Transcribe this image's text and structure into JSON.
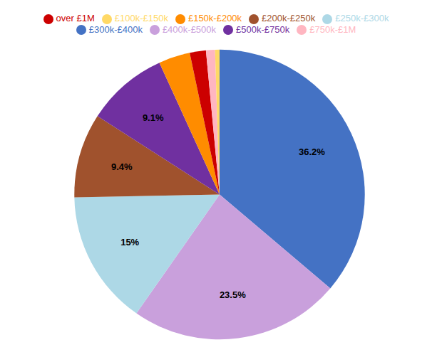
{
  "chart_data": {
    "type": "pie",
    "categories": [
      "£300k-£400k",
      "£400k-£500k",
      "£250k-£300k",
      "£200k-£250k",
      "£500k-£750k",
      "£150k-£200k",
      "over £1M",
      "£750k-£1M",
      "£100k-£150k"
    ],
    "values": [
      36.2,
      23.5,
      15.0,
      9.4,
      9.1,
      3.5,
      1.8,
      1.0,
      0.5
    ],
    "colors": [
      "#4472c4",
      "#c9a0dc",
      "#add8e6",
      "#a0522d",
      "#7030a0",
      "#ff8c00",
      "#cc0000",
      "#ffb6c1",
      "#ffd966"
    ],
    "value_labels": [
      "36.2%",
      "23.5%",
      "15%",
      "9.4%",
      "9.1%",
      null,
      null,
      null,
      null
    ],
    "data_labels": true,
    "legend": "top"
  }
}
